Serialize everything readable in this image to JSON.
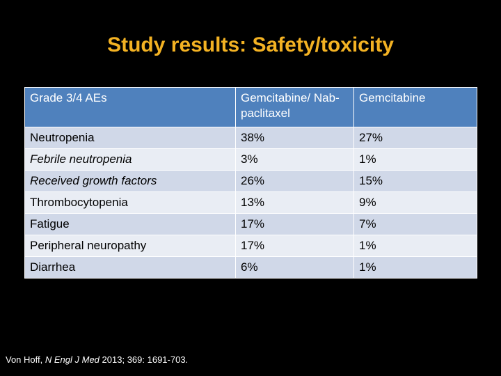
{
  "title": "Study results: Safety/toxicity",
  "table": {
    "headers": [
      "Grade 3/4 AEs",
      "Gemcitabine/ Nab-paclitaxel",
      "Gemcitabine"
    ],
    "rows": [
      {
        "label": "Neutropenia",
        "indent": false,
        "a": "38%",
        "b": "27%"
      },
      {
        "label": "Febrile neutropenia",
        "indent": true,
        "a": "3%",
        "b": "1%"
      },
      {
        "label": "Received growth factors",
        "indent": true,
        "a": "26%",
        "b": "15%"
      },
      {
        "label": "Thrombocytopenia",
        "indent": false,
        "a": "13%",
        "b": "9%"
      },
      {
        "label": "Fatigue",
        "indent": false,
        "a": "17%",
        "b": "7%"
      },
      {
        "label": "Peripheral neuropathy",
        "indent": false,
        "a": "17%",
        "b": "1%"
      },
      {
        "label": "Diarrhea",
        "indent": false,
        "a": "6%",
        "b": "1%"
      }
    ]
  },
  "citation": {
    "authors": "Von Hoff,",
    "journal": "N Engl J Med",
    "details": "2013; 369: 1691-703."
  },
  "colors": {
    "title": "#f3b223",
    "header_bg": "#4f81bd",
    "row_a": "#d0d8e8",
    "row_b": "#e9edf4"
  }
}
